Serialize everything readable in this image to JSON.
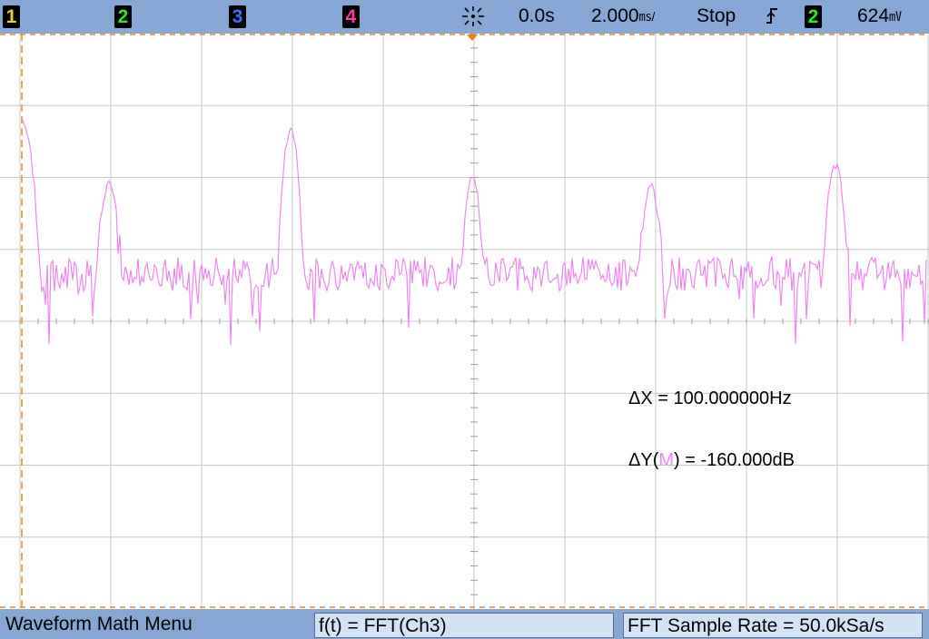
{
  "status_bar": {
    "channels": [
      {
        "label": "1",
        "color": "#e0e000"
      },
      {
        "label": "2",
        "color": "#22ee22"
      },
      {
        "label": "3",
        "color": "#3a70ff"
      },
      {
        "label": "4",
        "color": "#ff3a9e"
      }
    ],
    "acquire_icon": "acquisition-status-icon",
    "time_delay": "0.0s",
    "time_per_div": "2.000",
    "time_per_div_unit": "㎳/",
    "run_state": "Stop",
    "trigger_edge_icon": "rising-edge-icon",
    "trigger_source": "2",
    "trigger_level": "624",
    "trigger_level_unit": "㎷"
  },
  "screen": {
    "trace_color": "#ee88ee",
    "cursor_color": "#e58a1f",
    "grid_color": "#c8c8c8",
    "measurements": {
      "delta_x_label": "ΔX = 100.000000Hz",
      "delta_y_prefix": "ΔY(",
      "delta_y_source": "M",
      "delta_y_suffix": ") = -160.000dB"
    }
  },
  "softkeys": {
    "menu_title": "Waveform Math Menu",
    "function": "f(t) = FFT(Ch3)",
    "sample_rate": "FFT Sample Rate = 50.0kSa/s"
  }
}
